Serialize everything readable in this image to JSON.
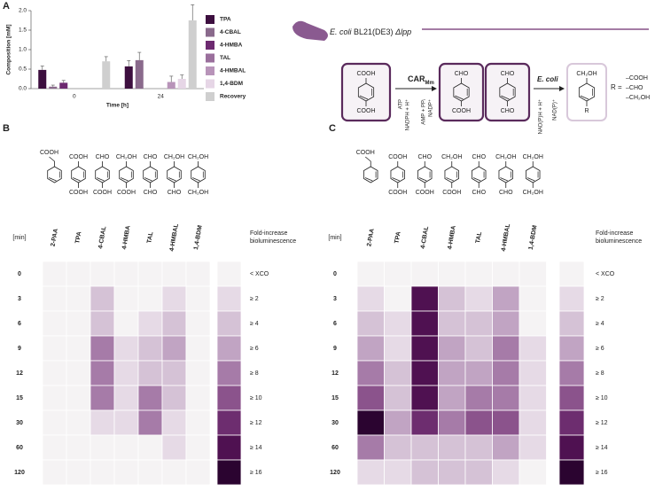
{
  "chart_data": [
    {
      "type": "bar",
      "panel": "A",
      "ylabel": "Composition [mM]",
      "xlabel": "Time [h]",
      "categories": [
        "0",
        "24"
      ],
      "ylim": [
        0,
        2.0
      ],
      "yticks": [
        {
          "value": 0,
          "label": "0.0"
        },
        {
          "value": 0.5,
          "label": "0.5"
        },
        {
          "value": 1.0,
          "label": "1.0"
        },
        {
          "value": 1.5,
          "label": "1.5"
        },
        {
          "value": 2.0,
          "label": "2.0"
        }
      ],
      "series": [
        {
          "name": "TPA",
          "color": "#3d0f3f",
          "values": [
            0.48,
            0.57
          ],
          "errors": [
            0.1,
            0.15
          ]
        },
        {
          "name": "4-CBAL",
          "color": "#8a6a8c",
          "values": [
            0.05,
            0.73
          ],
          "errors": [
            0.04,
            0.2
          ]
        },
        {
          "name": "4-HMBA",
          "color": "#6d2a70",
          "values": [
            0.15,
            null
          ],
          "errors": [
            0.06,
            null
          ]
        },
        {
          "name": "TAL",
          "color": "#9a6f9c",
          "values": [
            null,
            null
          ],
          "errors": [
            null,
            null
          ]
        },
        {
          "name": "4-HMBAL",
          "color": "#b894b9",
          "values": [
            null,
            0.17
          ],
          "errors": [
            null,
            0.15
          ]
        },
        {
          "name": "1,4-BDM",
          "color": "#e6d6e6",
          "values": [
            null,
            0.25
          ],
          "errors": [
            null,
            0.1
          ]
        },
        {
          "name": "Recovery",
          "color": "#cfcfcf",
          "values": [
            0.7,
            1.75
          ],
          "errors": [
            0.12,
            0.4
          ]
        }
      ]
    },
    {
      "type": "heatmap",
      "panel": "B",
      "ylabel": "[min]",
      "x_categories": [
        "2-PAA",
        "TPA",
        "4-CBAL",
        "4-HMBA",
        "TAL",
        "4-HMBAL",
        "1,4-BDM"
      ],
      "y_categories": [
        "0",
        "3",
        "6",
        "9",
        "12",
        "15",
        "30",
        "60",
        "120"
      ],
      "structures": [
        {
          "top": "COOH"
        },
        {
          "top": "COOH",
          "bottom": "COOH"
        },
        {
          "top": "CHO",
          "bottom": "COOH"
        },
        {
          "top": "CH₂OH",
          "bottom": "COOH"
        },
        {
          "top": "CHO",
          "bottom": "CHO"
        },
        {
          "top": "CH₂OH",
          "bottom": "CHO"
        },
        {
          "top": "CH₂OH",
          "bottom": "CH₂OH"
        }
      ],
      "values": [
        [
          0,
          0,
          0,
          0,
          0,
          0,
          0
        ],
        [
          0,
          0,
          4,
          0,
          0,
          2,
          0
        ],
        [
          0,
          0,
          4,
          0,
          2,
          4,
          0
        ],
        [
          0,
          0,
          8,
          2,
          4,
          6,
          0
        ],
        [
          0,
          0,
          8,
          2,
          4,
          4,
          0
        ],
        [
          0,
          0,
          8,
          2,
          8,
          4,
          0
        ],
        [
          0,
          0,
          2,
          2,
          8,
          2,
          0
        ],
        [
          0,
          0,
          0,
          0,
          0,
          2,
          0
        ],
        [
          0,
          0,
          0,
          0,
          0,
          0,
          0
        ]
      ],
      "legend": {
        "title": [
          "Fold-increase",
          "bioluminescence"
        ],
        "ticks": [
          {
            "value": 0,
            "label": "< XCO"
          },
          {
            "value": 2,
            "label": "≥ 2"
          },
          {
            "value": 4,
            "label": "≥ 4"
          },
          {
            "value": 6,
            "label": "≥ 6"
          },
          {
            "value": 8,
            "label": "≥ 8"
          },
          {
            "value": 10,
            "label": "≥ 10"
          },
          {
            "value": 12,
            "label": "≥ 12"
          },
          {
            "value": 14,
            "label": "≥ 14"
          },
          {
            "value": 16,
            "label": "≥ 16"
          }
        ],
        "colors": [
          "#f5f3f4",
          "#e6dae6",
          "#d5c2d6",
          "#c1a4c3",
          "#a67ba8",
          "#8b538c",
          "#6d2d6f",
          "#4f1151",
          "#2b0430"
        ]
      }
    },
    {
      "type": "heatmap",
      "panel": "C",
      "ylabel": "[min]",
      "x_categories": [
        "2-PAA",
        "TPA",
        "4-CBAL",
        "4-HMBA",
        "TAL",
        "4-HMBAL",
        "1,4-BDM"
      ],
      "y_categories": [
        "0",
        "3",
        "6",
        "9",
        "12",
        "15",
        "30",
        "60",
        "120"
      ],
      "structures": [
        {
          "top": "COOH"
        },
        {
          "top": "COOH",
          "bottom": "COOH"
        },
        {
          "top": "CHO",
          "bottom": "COOH"
        },
        {
          "top": "CH₂OH",
          "bottom": "COOH"
        },
        {
          "top": "CHO",
          "bottom": "CHO"
        },
        {
          "top": "CH₂OH",
          "bottom": "CHO"
        },
        {
          "top": "CH₂OH",
          "bottom": "CH₂OH"
        }
      ],
      "values": [
        [
          0,
          0,
          0,
          0,
          0,
          0,
          0
        ],
        [
          2,
          0,
          14,
          4,
          2,
          6,
          0
        ],
        [
          4,
          2,
          14,
          4,
          4,
          6,
          0
        ],
        [
          6,
          2,
          14,
          6,
          4,
          8,
          2
        ],
        [
          8,
          4,
          14,
          6,
          6,
          8,
          2
        ],
        [
          10,
          4,
          14,
          6,
          8,
          8,
          2
        ],
        [
          16,
          6,
          12,
          8,
          10,
          10,
          2
        ],
        [
          8,
          4,
          4,
          4,
          4,
          6,
          2
        ],
        [
          2,
          2,
          4,
          4,
          4,
          2,
          0
        ]
      ],
      "legend": {
        "title": [
          "Fold-increase",
          "bioluminescence"
        ],
        "ticks": [
          {
            "value": 0,
            "label": "< XCO"
          },
          {
            "value": 2,
            "label": "≥ 2"
          },
          {
            "value": 4,
            "label": "≥ 4"
          },
          {
            "value": 6,
            "label": "≥ 6"
          },
          {
            "value": 8,
            "label": "≥ 8"
          },
          {
            "value": 10,
            "label": "≥ 10"
          },
          {
            "value": 12,
            "label": "≥ 12"
          },
          {
            "value": 14,
            "label": "≥ 14"
          },
          {
            "value": 16,
            "label": "≥ 16"
          }
        ],
        "colors": [
          "#f5f3f4",
          "#e6dae6",
          "#d5c2d6",
          "#c1a4c3",
          "#a67ba8",
          "#8b538c",
          "#6d2d6f",
          "#4f1151",
          "#2b0430"
        ]
      }
    }
  ],
  "scheme": {
    "organism": "E. coli",
    "strain": "BL21(DE3)",
    "genotype": "Δlpp",
    "enzyme": "CAR",
    "enzyme_sub": "Mm",
    "host": "E. coli",
    "cofactors_in_1": [
      "ATP",
      "NADPH + H⁺"
    ],
    "cofactors_out_1": [
      "AMP + PPᵢ",
      "NADP⁺"
    ],
    "cofactors_in_2": "NAD(P)H + H⁺",
    "cofactors_out_2": "NAD(P)⁺",
    "molecules": [
      {
        "top": "COOH",
        "bottom": "COOH"
      },
      {
        "top": "CHO",
        "bottom": "COOH"
      },
      {
        "top": "CHO",
        "bottom": "CHO"
      },
      {
        "top": "CH₂OH",
        "bottom": "R"
      }
    ],
    "r_label": "R =",
    "r_groups": [
      "–COOH",
      "–CHO",
      "–CH₂OH"
    ]
  }
}
